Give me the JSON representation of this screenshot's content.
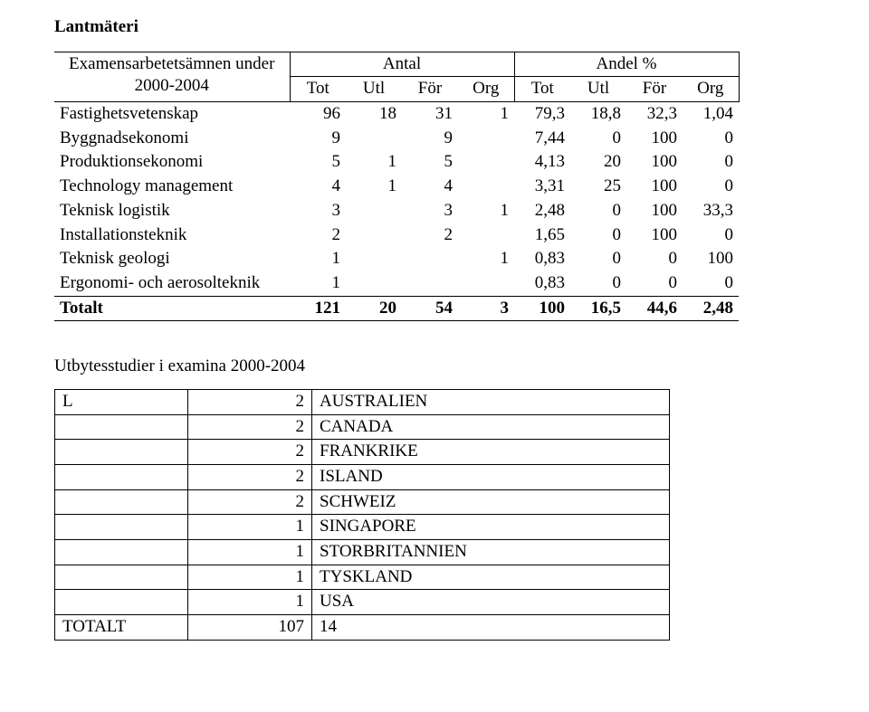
{
  "title": "Lantmäteri",
  "table1": {
    "hdr_label_l1": "Examensarbetetsämnen under",
    "hdr_label_l2": "2000-2004",
    "hdr_antal": "Antal",
    "hdr_andel": "Andel %",
    "sub_tot": "Tot",
    "sub_utl": "Utl",
    "sub_for": "För",
    "sub_org": "Org",
    "rows": [
      {
        "label": "Fastighetsvetenskap",
        "a1": "96",
        "a2": "18",
        "a3": "31",
        "a4": "1",
        "p1": "79,3",
        "p2": "18,8",
        "p3": "32,3",
        "p4": "1,04"
      },
      {
        "label": "Byggnadsekonomi",
        "a1": "9",
        "a2": "",
        "a3": "9",
        "a4": "",
        "p1": "7,44",
        "p2": "0",
        "p3": "100",
        "p4": "0"
      },
      {
        "label": "Produktionsekonomi",
        "a1": "5",
        "a2": "1",
        "a3": "5",
        "a4": "",
        "p1": "4,13",
        "p2": "20",
        "p3": "100",
        "p4": "0"
      },
      {
        "label": "Technology management",
        "a1": "4",
        "a2": "1",
        "a3": "4",
        "a4": "",
        "p1": "3,31",
        "p2": "25",
        "p3": "100",
        "p4": "0"
      },
      {
        "label": "Teknisk logistik",
        "a1": "3",
        "a2": "",
        "a3": "3",
        "a4": "1",
        "p1": "2,48",
        "p2": "0",
        "p3": "100",
        "p4": "33,3"
      },
      {
        "label": "Installationsteknik",
        "a1": "2",
        "a2": "",
        "a3": "2",
        "a4": "",
        "p1": "1,65",
        "p2": "0",
        "p3": "100",
        "p4": "0"
      },
      {
        "label": "Teknisk geologi",
        "a1": "1",
        "a2": "",
        "a3": "",
        "a4": "1",
        "p1": "0,83",
        "p2": "0",
        "p3": "0",
        "p4": "100"
      },
      {
        "label": "Ergonomi- och aerosolteknik",
        "a1": "1",
        "a2": "",
        "a3": "",
        "a4": "",
        "p1": "0,83",
        "p2": "0",
        "p3": "0",
        "p4": "0"
      }
    ],
    "total": {
      "label": "Totalt",
      "a1": "121",
      "a2": "20",
      "a3": "54",
      "a4": "3",
      "p1": "100",
      "p2": "16,5",
      "p3": "44,6",
      "p4": "2,48"
    }
  },
  "subhead": "Utbytesstudier i examina 2000-2004",
  "table2": {
    "first": {
      "c1": "L",
      "c2": "2",
      "c3": "AUSTRALIEN"
    },
    "rows": [
      {
        "c2": "2",
        "c3": "CANADA"
      },
      {
        "c2": "2",
        "c3": "FRANKRIKE"
      },
      {
        "c2": "2",
        "c3": "ISLAND"
      },
      {
        "c2": "2",
        "c3": "SCHWEIZ"
      },
      {
        "c2": "1",
        "c3": "SINGAPORE"
      },
      {
        "c2": "1",
        "c3": "STORBRITANNIEN"
      },
      {
        "c2": "1",
        "c3": "TYSKLAND"
      },
      {
        "c2": "1",
        "c3": "USA"
      }
    ],
    "total": {
      "c1": "TOTALT",
      "c2": "107",
      "c3": "14"
    }
  }
}
